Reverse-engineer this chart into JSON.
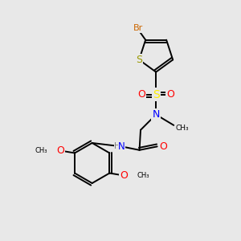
{
  "background_color": "#e8e8e8",
  "atom_colors": {
    "C": "#000000",
    "H": "#808080",
    "N": "#0000ff",
    "O": "#ff0000",
    "S_ring": "#999900",
    "S_sulfonyl": "#ffee00",
    "Br": "#cc6600"
  },
  "figsize": [
    3.0,
    3.0
  ],
  "dpi": 100,
  "xlim": [
    0,
    10
  ],
  "ylim": [
    0,
    10
  ]
}
